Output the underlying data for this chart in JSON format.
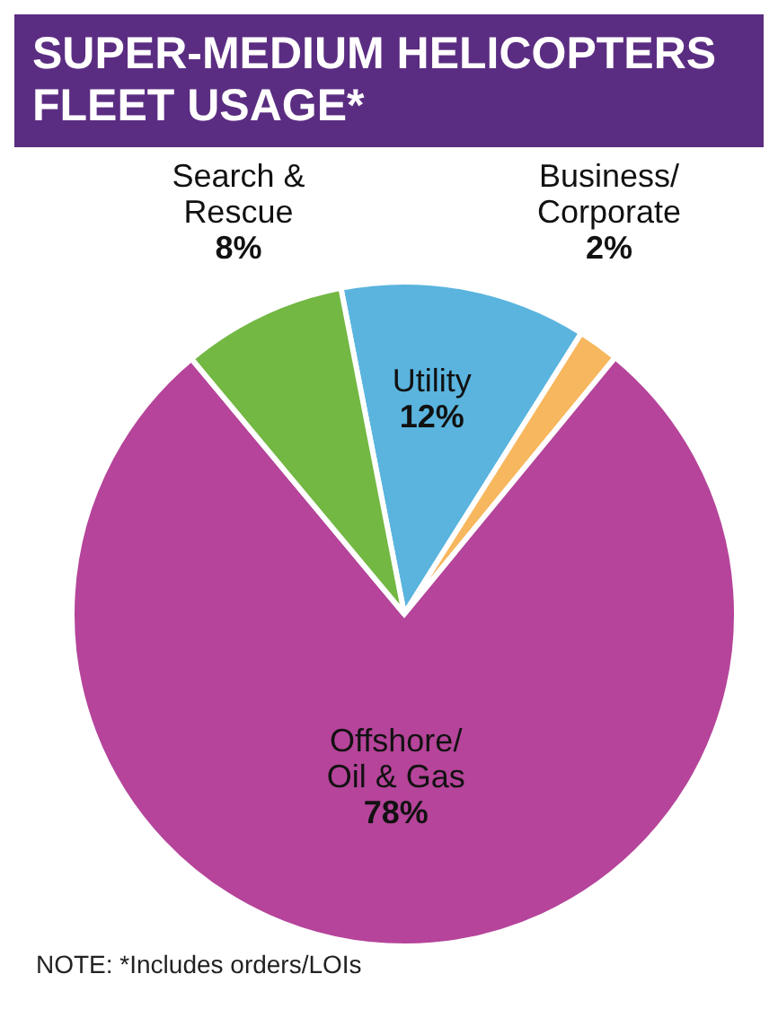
{
  "chart_data": {
    "type": "pie",
    "title": "SUPER-MEDIUM HELICOPTERS FLEET USAGE*",
    "categories": [
      "Utility",
      "Business/\nCorporate",
      "Offshore/\nOil & Gas",
      "Search &\nRescue"
    ],
    "values": [
      12,
      2,
      78,
      8
    ],
    "colors": [
      "#5ab4de",
      "#f7b75e",
      "#b5449a",
      "#72b843"
    ],
    "value_labels": [
      "12%",
      "2%",
      "78%",
      "8%"
    ],
    "annotations": [
      "NOTE: *Includes orders/LOIs"
    ]
  }
}
